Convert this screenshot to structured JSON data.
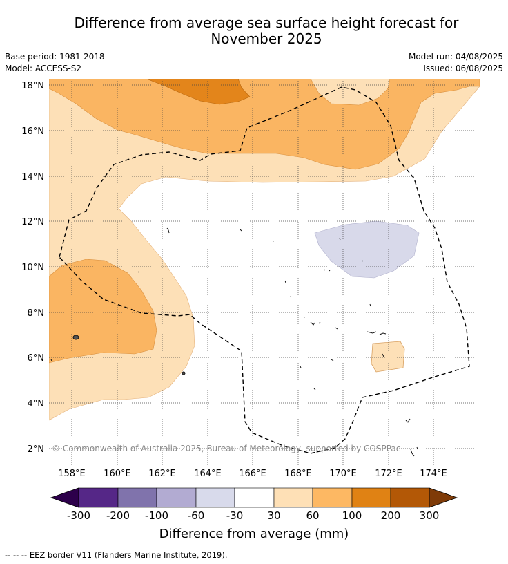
{
  "title": {
    "line1": "Difference from average sea surface height forecast for",
    "line2": "November 2025"
  },
  "meta": {
    "base_period": "Base period: 1981-2018",
    "model": "Model: ACCESS-S2",
    "model_run": "Model run: 04/08/2025",
    "issued": "Issued: 06/08/2025"
  },
  "map": {
    "lat_labels": [
      "18°N",
      "16°N",
      "14°N",
      "12°N",
      "10°N",
      "8°N",
      "6°N",
      "4°N",
      "2°N"
    ],
    "lon_labels": [
      "158°E",
      "160°E",
      "162°E",
      "164°E",
      "166°E",
      "168°E",
      "170°E",
      "172°E",
      "174°E"
    ],
    "copyright": "© Commonwealth of Australia 2025, Bureau of Meteorology, supported by COSPPac",
    "colors": {
      "band_30_60": "#fde0b7",
      "band_60_100": "#fab562",
      "band_100_200": "#e3851b",
      "band_m60_m30": "#d8d9ea"
    }
  },
  "colorbar": {
    "tick_labels": [
      "-300",
      "-200",
      "-100",
      "-60",
      "-30",
      "30",
      "60",
      "100",
      "200",
      "300"
    ],
    "colors": [
      "#2d004b",
      "#552787",
      "#8073ac",
      "#b2abd2",
      "#d8daeb",
      "#ffffff",
      "#fee0b6",
      "#fdb863",
      "#e08214",
      "#b35806",
      "#7f3b08"
    ],
    "label": "Difference from average (mm)"
  },
  "footnote": "--  --  -- EEZ border V11 (Flanders Marine Institute, 2019)."
}
